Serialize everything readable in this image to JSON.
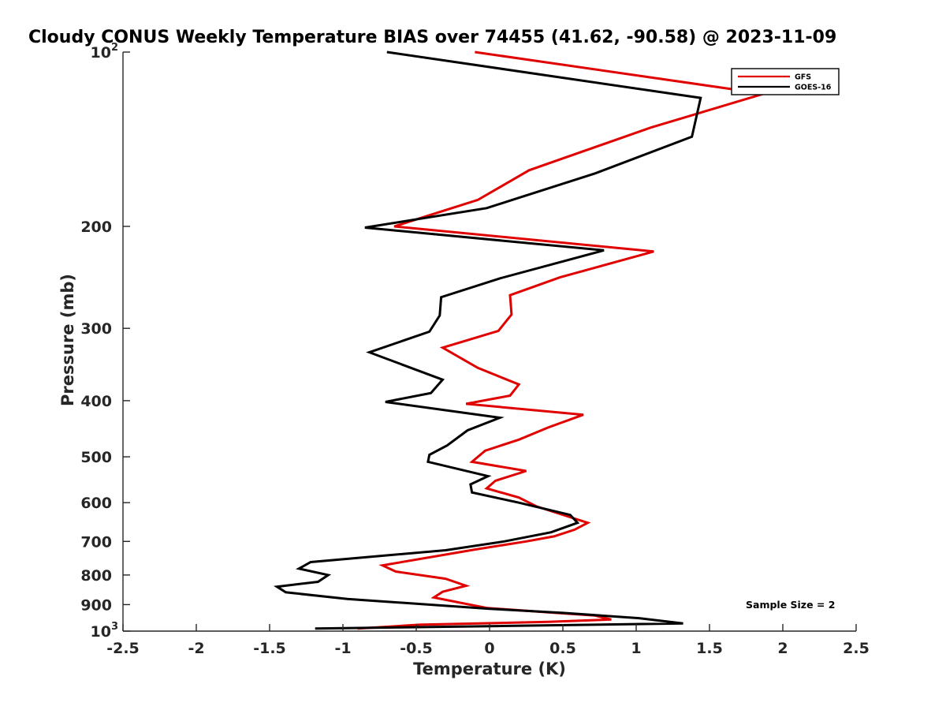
{
  "chart_data": {
    "type": "line",
    "title": "Cloudy CONUS Weekly Temperature BIAS over 74455 (41.62, -90.58) @ 2023-11-09",
    "xlabel": "Temperature (K)",
    "ylabel": "Pressure (mb)",
    "xlim": [
      -2.5,
      2.5
    ],
    "ylim": [
      100,
      1000
    ],
    "y_scale": "log",
    "y_reversed": true,
    "grid": false,
    "legend_position": "top-right",
    "x_tick_labels": [
      "-2.5",
      "-2",
      "-1.5",
      "-1",
      "-0.5",
      "0",
      "0.5",
      "1",
      "1.5",
      "2",
      "2.5"
    ],
    "x_ticks": [
      -2.5,
      -2,
      -1.5,
      -1,
      -0.5,
      0,
      0.5,
      1,
      1.5,
      2,
      2.5
    ],
    "y_tick_labels": [
      {
        "value": 100,
        "base": "10",
        "exp": "2"
      },
      {
        "value": 200,
        "base": "200"
      },
      {
        "value": 300,
        "base": "300"
      },
      {
        "value": 400,
        "base": "400"
      },
      {
        "value": 500,
        "base": "500"
      },
      {
        "value": 600,
        "base": "600"
      },
      {
        "value": 700,
        "base": "700"
      },
      {
        "value": 800,
        "base": "800"
      },
      {
        "value": 900,
        "base": "900"
      },
      {
        "value": 1000,
        "base": "10",
        "exp": "3"
      }
    ],
    "annotation": "Sample Size = 2",
    "series": [
      {
        "name": "GFS",
        "color": "#e00000",
        "points": [
          [
            -0.1,
            100
          ],
          [
            1.87,
            118
          ],
          [
            1.1,
            135
          ],
          [
            0.27,
            160
          ],
          [
            -0.08,
            180
          ],
          [
            -0.65,
            200
          ],
          [
            1.12,
            221
          ],
          [
            0.48,
            245
          ],
          [
            0.14,
            263
          ],
          [
            0.15,
            284
          ],
          [
            0.06,
            303
          ],
          [
            -0.32,
            324
          ],
          [
            -0.08,
            351
          ],
          [
            0.2,
            375
          ],
          [
            0.14,
            392
          ],
          [
            -0.16,
            405
          ],
          [
            0.64,
            423
          ],
          [
            0.4,
            445
          ],
          [
            0.2,
            467
          ],
          [
            -0.03,
            488
          ],
          [
            -0.12,
            510
          ],
          [
            0.25,
            529
          ],
          [
            0.04,
            550
          ],
          [
            -0.02,
            567
          ],
          [
            0.2,
            588
          ],
          [
            0.32,
            609
          ],
          [
            0.67,
            650
          ],
          [
            0.58,
            668
          ],
          [
            0.44,
            686
          ],
          [
            0.25,
            700
          ],
          [
            -0.1,
            723
          ],
          [
            -0.73,
            770
          ],
          [
            -0.64,
            789
          ],
          [
            -0.3,
            812
          ],
          [
            -0.16,
            835
          ],
          [
            -0.32,
            855
          ],
          [
            -0.38,
            875
          ],
          [
            -0.02,
            912
          ],
          [
            0.45,
            930
          ],
          [
            0.72,
            940
          ],
          [
            0.83,
            955
          ],
          [
            0.4,
            964
          ],
          [
            -0.48,
            975
          ],
          [
            -0.9,
            990
          ]
        ]
      },
      {
        "name": "GOES-16",
        "color": "#000000",
        "points": [
          [
            -0.7,
            100
          ],
          [
            1.44,
            120
          ],
          [
            1.38,
            140
          ],
          [
            0.72,
            162
          ],
          [
            -0.02,
            186
          ],
          [
            -0.85,
            201
          ],
          [
            0.78,
            220
          ],
          [
            0.07,
            246
          ],
          [
            -0.33,
            265
          ],
          [
            -0.34,
            285
          ],
          [
            -0.41,
            304
          ],
          [
            -0.82,
            330
          ],
          [
            -0.32,
            368
          ],
          [
            -0.4,
            388
          ],
          [
            -0.71,
            402
          ],
          [
            0.07,
            428
          ],
          [
            -0.15,
            450
          ],
          [
            -0.29,
            478
          ],
          [
            -0.41,
            496
          ],
          [
            -0.42,
            510
          ],
          [
            -0.01,
            540
          ],
          [
            -0.13,
            558
          ],
          [
            -0.12,
            576
          ],
          [
            0.2,
            600
          ],
          [
            0.55,
            630
          ],
          [
            0.6,
            650
          ],
          [
            0.42,
            675
          ],
          [
            0.1,
            700
          ],
          [
            -0.3,
            725
          ],
          [
            -1.22,
            760
          ],
          [
            -1.3,
            780
          ],
          [
            -1.1,
            800
          ],
          [
            -1.17,
            822
          ],
          [
            -1.45,
            838
          ],
          [
            -1.39,
            857
          ],
          [
            -0.97,
            880
          ],
          [
            0.0,
            915
          ],
          [
            0.5,
            930
          ],
          [
            1.02,
            950
          ],
          [
            1.32,
            970
          ],
          [
            0.05,
            980
          ],
          [
            -0.6,
            985
          ],
          [
            -1.19,
            990
          ]
        ]
      }
    ]
  }
}
